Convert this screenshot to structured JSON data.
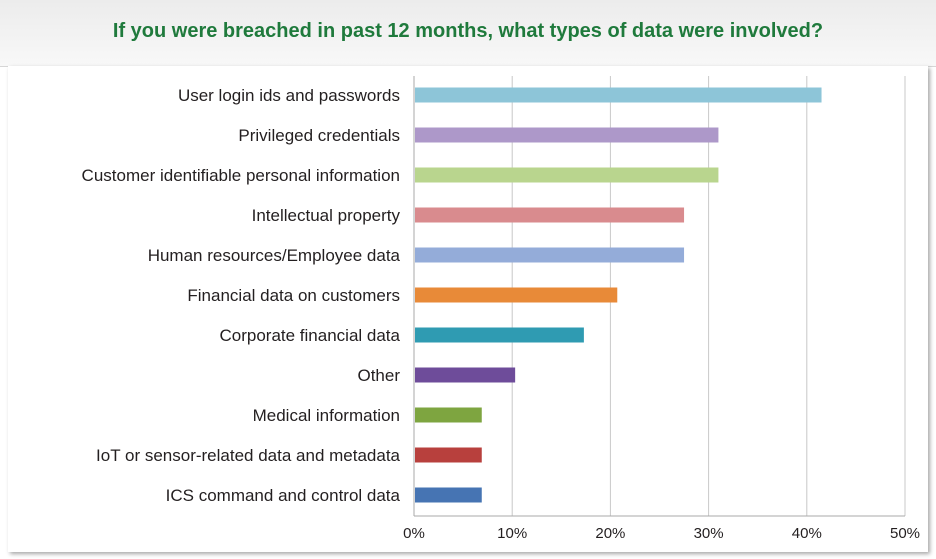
{
  "header": {
    "title": "If you were breached in past 12 months, what types of data were involved?"
  },
  "chart_data": {
    "type": "bar",
    "orientation": "horizontal",
    "title": "If you were breached in past 12 months, what types of data were involved?",
    "xlabel": "",
    "ylabel": "",
    "xlim": [
      0,
      50
    ],
    "x_ticks": [
      "0%",
      "10%",
      "20%",
      "30%",
      "40%",
      "50%"
    ],
    "grid": true,
    "categories": [
      "User login ids and passwords",
      "Privileged credentials",
      "Customer identifiable personal information",
      "Intellectual property",
      "Human resources/Employee data",
      "Financial data on customers",
      "Corporate financial data",
      "Other",
      "Medical information",
      "IoT or sensor-related data and metadata",
      "ICS command and control data"
    ],
    "values": [
      41.5,
      31,
      31,
      27.5,
      27.5,
      20.7,
      17.3,
      10.3,
      6.9,
      6.9,
      6.9
    ],
    "colors": [
      "#8dc5d8",
      "#ad98c9",
      "#b9d58e",
      "#d98b8e",
      "#94acd9",
      "#e88a38",
      "#2f9bb2",
      "#6e4c9a",
      "#7ea540",
      "#b8403d",
      "#4674b3"
    ],
    "gridline_color": "#c8c8c8"
  }
}
